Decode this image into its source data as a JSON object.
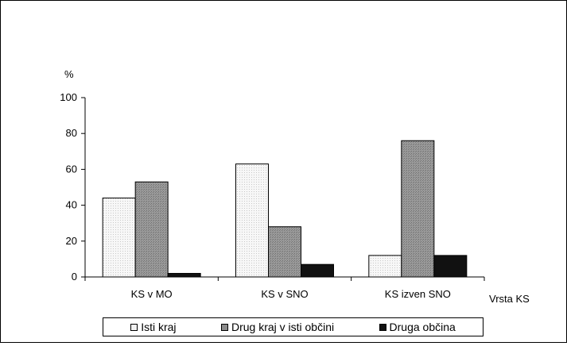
{
  "chart_data": {
    "type": "bar",
    "title": "",
    "ylabel": "%",
    "xlabel": "Vrsta KS",
    "ylim": [
      0,
      100
    ],
    "yticks": [
      0,
      20,
      40,
      60,
      80,
      100
    ],
    "categories": [
      "KS v MO",
      "KS v SNO",
      "KS izven SNO"
    ],
    "series": [
      {
        "name": "Isti kraj",
        "values": [
          44,
          63,
          12
        ],
        "color": "#f2f2f2",
        "pattern": "dotted-light"
      },
      {
        "name": "Drug kraj v isti občini",
        "values": [
          53,
          28,
          76
        ],
        "color": "#8c8c8c",
        "pattern": "dotted-medium"
      },
      {
        "name": "Druga občina",
        "values": [
          2,
          7,
          12
        ],
        "color": "#111111",
        "pattern": "solid-dark"
      }
    ],
    "legend": {
      "position": "bottom"
    },
    "grid": false
  }
}
